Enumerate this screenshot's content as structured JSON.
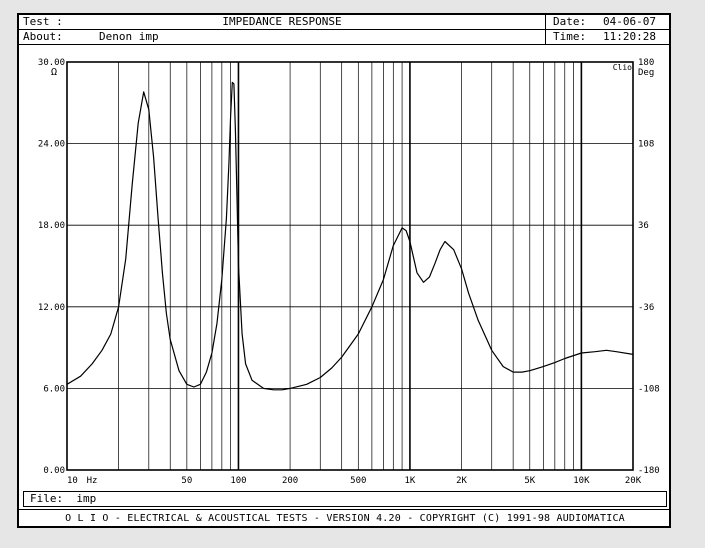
{
  "header": {
    "test_label": "Test :",
    "title": "IMPEDANCE RESPONSE",
    "date_label": "Date:",
    "date_value": "04-06-07",
    "about_label": "About:",
    "about_value": "Denon imp",
    "time_label": "Time:",
    "time_value": "11:20:28"
  },
  "file_line": "File:  imp",
  "footer": "O L I O  -  ELECTRICAL & ACOUSTICAL TESTS  -  VERSION 4.20  -  COPYRIGHT (C) 1991-98 AUDIOMATICA",
  "chart_data": {
    "type": "line",
    "title": "IMPEDANCE RESPONSE",
    "xscale": "log",
    "xlim": [
      10,
      20000
    ],
    "ylim": [
      0,
      30
    ],
    "y2lim": [
      -180,
      180
    ],
    "grid": true,
    "x_tick_labels": [
      {
        "x": 10,
        "label": "10"
      },
      {
        "x": 14,
        "label": "Hz"
      },
      {
        "x": 50,
        "label": "50"
      },
      {
        "x": 100,
        "label": "100"
      },
      {
        "x": 200,
        "label": "200"
      },
      {
        "x": 500,
        "label": "500"
      },
      {
        "x": 1000,
        "label": "1K"
      },
      {
        "x": 2000,
        "label": "2K"
      },
      {
        "x": 5000,
        "label": "5K"
      },
      {
        "x": 10000,
        "label": "10K"
      },
      {
        "x": 20000,
        "label": "20K"
      }
    ],
    "y_ticks": [
      {
        "y": 0,
        "label": "0.00"
      },
      {
        "y": 6,
        "label": "6.00"
      },
      {
        "y": 12,
        "label": "12.00"
      },
      {
        "y": 18,
        "label": "18.00"
      },
      {
        "y": 24,
        "label": "24.00"
      },
      {
        "y": 30,
        "label": "30.00"
      }
    ],
    "y_unit": "Ω",
    "y2_ticks": [
      {
        "y": -180,
        "label": "-180"
      },
      {
        "y": -108,
        "label": "-108"
      },
      {
        "y": -36,
        "label": "-36"
      },
      {
        "y": 36,
        "label": "36"
      },
      {
        "y": 108,
        "label": "108"
      },
      {
        "y": 180,
        "label": "180"
      }
    ],
    "y2_unit": "Deg",
    "corner_label": "Clio",
    "series": [
      {
        "color": "#000000",
        "x": [
          10,
          12,
          14,
          16,
          18,
          20,
          22,
          24,
          26,
          28,
          30,
          32,
          34,
          36,
          38,
          40,
          45,
          50,
          55,
          60,
          65,
          70,
          75,
          80,
          85,
          88,
          90,
          92,
          94,
          96,
          98,
          100,
          105,
          110,
          120,
          140,
          160,
          180,
          200,
          250,
          300,
          350,
          400,
          500,
          600,
          700,
          800,
          900,
          950,
          1000,
          1100,
          1200,
          1300,
          1400,
          1500,
          1600,
          1800,
          2000,
          2200,
          2500,
          3000,
          3500,
          4000,
          4500,
          5000,
          6000,
          7000,
          8000,
          10000,
          12000,
          14000,
          16000,
          20000
        ],
        "y": [
          6.3,
          6.9,
          7.8,
          8.8,
          10.0,
          12.0,
          15.5,
          21.0,
          25.5,
          27.8,
          26.5,
          23.0,
          18.5,
          14.5,
          11.5,
          9.6,
          7.3,
          6.3,
          6.1,
          6.3,
          7.2,
          8.6,
          10.8,
          14.0,
          18.5,
          22.5,
          26.0,
          28.5,
          28.4,
          25.0,
          20.0,
          15.0,
          10.0,
          7.8,
          6.6,
          6.0,
          5.9,
          5.9,
          6.0,
          6.3,
          6.8,
          7.5,
          8.3,
          10.0,
          12.0,
          14.0,
          16.5,
          17.8,
          17.6,
          16.8,
          14.5,
          13.8,
          14.2,
          15.2,
          16.2,
          16.8,
          16.2,
          14.8,
          13.0,
          11.0,
          8.8,
          7.6,
          7.2,
          7.2,
          7.3,
          7.6,
          7.9,
          8.2,
          8.6,
          8.7,
          8.8,
          8.7,
          8.5
        ]
      }
    ]
  }
}
